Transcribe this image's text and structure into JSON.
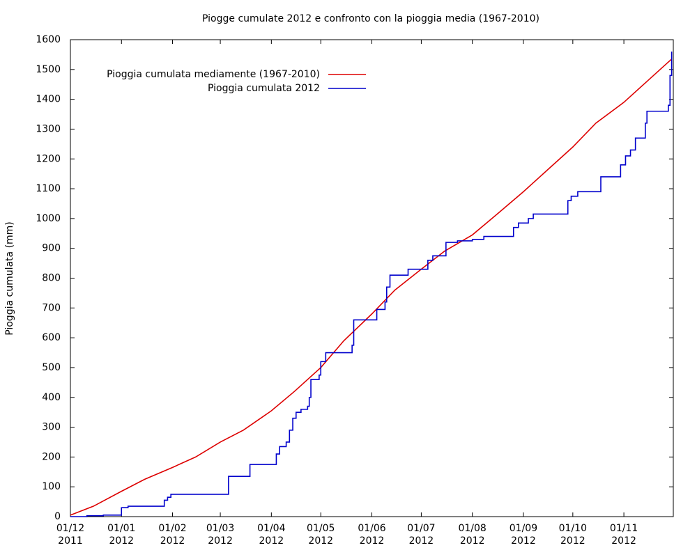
{
  "chart_data": {
    "type": "line",
    "title": "Piogge cumulate 2012 e confronto con la pioggia media (1967-2010)",
    "y_label": "Pioggia cumulata (mm)",
    "xlim": [
      "2011-12-01",
      "2012-12-01"
    ],
    "ylim": [
      0,
      1600
    ],
    "yticks": [
      0,
      100,
      200,
      300,
      400,
      500,
      600,
      700,
      800,
      900,
      1000,
      1100,
      1200,
      1300,
      1400,
      1500,
      1600
    ],
    "xticks": [
      {
        "value": "2011-12-01",
        "label": [
          "01/12",
          "2011"
        ]
      },
      {
        "value": "2012-01-01",
        "label": [
          "01/01",
          "2012"
        ]
      },
      {
        "value": "2012-02-01",
        "label": [
          "01/02",
          "2012"
        ]
      },
      {
        "value": "2012-03-01",
        "label": [
          "01/03",
          "2012"
        ]
      },
      {
        "value": "2012-04-01",
        "label": [
          "01/04",
          "2012"
        ]
      },
      {
        "value": "2012-05-01",
        "label": [
          "01/05",
          "2012"
        ]
      },
      {
        "value": "2012-06-01",
        "label": [
          "01/06",
          "2012"
        ]
      },
      {
        "value": "2012-07-01",
        "label": [
          "01/07",
          "2012"
        ]
      },
      {
        "value": "2012-08-01",
        "label": [
          "01/08",
          "2012"
        ]
      },
      {
        "value": "2012-09-01",
        "label": [
          "01/09",
          "2012"
        ]
      },
      {
        "value": "2012-10-01",
        "label": [
          "01/10",
          "2012"
        ]
      },
      {
        "value": "2012-11-01",
        "label": [
          "01/11",
          "2012"
        ]
      }
    ],
    "grid": false,
    "legend": "top-left",
    "series": [
      {
        "name": "Pioggia cumulata mediamente (1967-2010)",
        "color": "#dd0000",
        "x": [
          "2011-12-01",
          "2011-12-15",
          "2012-01-01",
          "2012-01-15",
          "2012-02-01",
          "2012-02-15",
          "2012-03-01",
          "2012-03-15",
          "2012-04-01",
          "2012-04-15",
          "2012-05-01",
          "2012-05-15",
          "2012-06-01",
          "2012-06-15",
          "2012-07-01",
          "2012-07-15",
          "2012-08-01",
          "2012-08-15",
          "2012-09-01",
          "2012-09-15",
          "2012-10-01",
          "2012-10-15",
          "2012-11-01",
          "2012-11-15",
          "2012-11-30"
        ],
        "values": [
          5,
          35,
          85,
          125,
          165,
          200,
          250,
          290,
          355,
          420,
          500,
          590,
          680,
          760,
          830,
          890,
          945,
          1010,
          1090,
          1160,
          1240,
          1320,
          1390,
          1460,
          1535
        ]
      },
      {
        "name": "Pioggia cumulata 2012",
        "color": "#0000cc",
        "x": [
          "2011-12-01",
          "2011-12-11",
          "2011-12-11",
          "2011-12-21",
          "2011-12-21",
          "2012-01-01",
          "2012-01-01",
          "2012-01-05",
          "2012-01-05",
          "2012-01-27",
          "2012-01-27",
          "2012-01-29",
          "2012-01-29",
          "2012-01-31",
          "2012-01-31",
          "2012-03-06",
          "2012-03-06",
          "2012-03-19",
          "2012-03-19",
          "2012-04-04",
          "2012-04-04",
          "2012-04-06",
          "2012-04-06",
          "2012-04-10",
          "2012-04-10",
          "2012-04-12",
          "2012-04-12",
          "2012-04-14",
          "2012-04-14",
          "2012-04-16",
          "2012-04-16",
          "2012-04-19",
          "2012-04-19",
          "2012-04-23",
          "2012-04-23",
          "2012-04-24",
          "2012-04-24",
          "2012-04-25",
          "2012-04-25",
          "2012-04-30",
          "2012-04-30",
          "2012-05-01",
          "2012-05-01",
          "2012-05-04",
          "2012-05-04",
          "2012-05-20",
          "2012-05-20",
          "2012-05-21",
          "2012-05-21",
          "2012-06-04",
          "2012-06-04",
          "2012-06-09",
          "2012-06-09",
          "2012-06-10",
          "2012-06-10",
          "2012-06-12",
          "2012-06-12",
          "2012-06-23",
          "2012-06-23",
          "2012-07-05",
          "2012-07-05",
          "2012-07-08",
          "2012-07-08",
          "2012-07-16",
          "2012-07-16",
          "2012-07-23",
          "2012-07-23",
          "2012-08-01",
          "2012-08-01",
          "2012-08-08",
          "2012-08-08",
          "2012-08-26",
          "2012-08-26",
          "2012-08-29",
          "2012-08-29",
          "2012-09-04",
          "2012-09-04",
          "2012-09-07",
          "2012-09-07",
          "2012-09-28",
          "2012-09-28",
          "2012-09-30",
          "2012-09-30",
          "2012-10-04",
          "2012-10-04",
          "2012-10-18",
          "2012-10-18",
          "2012-10-30",
          "2012-10-30",
          "2012-11-02",
          "2012-11-02",
          "2012-11-05",
          "2012-11-05",
          "2012-11-08",
          "2012-11-08",
          "2012-11-14",
          "2012-11-14",
          "2012-11-15",
          "2012-11-15",
          "2012-11-28",
          "2012-11-28",
          "2012-11-29",
          "2012-11-29",
          "2012-11-30",
          "2012-11-30"
        ],
        "values": [
          0,
          0,
          3,
          3,
          5,
          5,
          30,
          30,
          35,
          35,
          55,
          55,
          65,
          65,
          75,
          75,
          135,
          135,
          175,
          175,
          210,
          210,
          235,
          235,
          250,
          250,
          290,
          290,
          330,
          330,
          350,
          350,
          360,
          360,
          370,
          370,
          400,
          400,
          460,
          460,
          475,
          475,
          520,
          520,
          550,
          550,
          575,
          575,
          660,
          660,
          695,
          695,
          720,
          720,
          770,
          770,
          810,
          810,
          830,
          830,
          860,
          860,
          875,
          875,
          920,
          920,
          925,
          925,
          930,
          930,
          940,
          940,
          970,
          970,
          985,
          985,
          1000,
          1000,
          1015,
          1015,
          1060,
          1060,
          1075,
          1075,
          1090,
          1090,
          1140,
          1140,
          1180,
          1180,
          1210,
          1210,
          1230,
          1230,
          1270,
          1270,
          1320,
          1320,
          1360,
          1360,
          1380,
          1380,
          1480,
          1480,
          1560
        ]
      }
    ]
  }
}
